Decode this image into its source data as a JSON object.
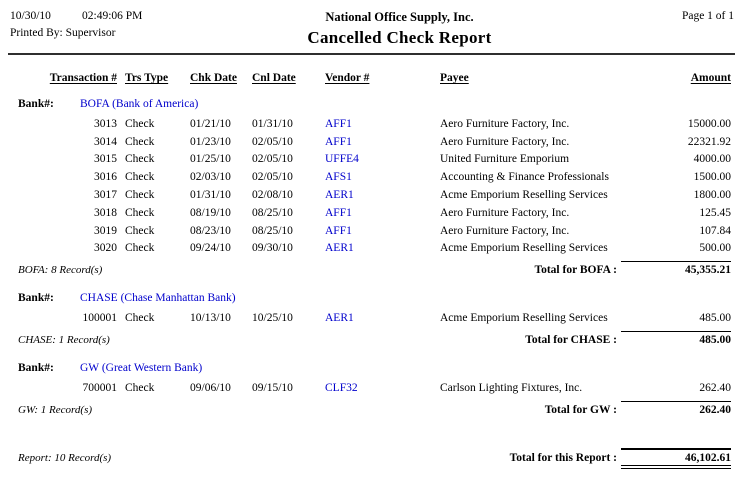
{
  "header": {
    "date": "10/30/10",
    "time": "02:49:06 PM",
    "printed_by": "Printed By: Supervisor",
    "company": "National Office Supply, Inc.",
    "title": "Cancelled Check Report",
    "page": "Page 1 of 1"
  },
  "table": {
    "columns": {
      "transaction": "Transaction #",
      "trs_type": "Trs Type",
      "chk_date": "Chk Date",
      "cnl_date": "Cnl Date",
      "vendor": "Vendor #",
      "payee": "Payee",
      "amount": "Amount"
    },
    "bank_label": "Bank#:",
    "groups": [
      {
        "bank": "BOFA (Bank of America)",
        "rows": [
          {
            "transaction": "3013",
            "trs_type": "Check",
            "chk_date": "01/21/10",
            "cnl_date": "01/31/10",
            "vendor": "AFF1",
            "payee": "Aero Furniture Factory, Inc.",
            "amount": "15000.00"
          },
          {
            "transaction": "3014",
            "trs_type": "Check",
            "chk_date": "01/23/10",
            "cnl_date": "02/05/10",
            "vendor": "AFF1",
            "payee": "Aero Furniture Factory, Inc.",
            "amount": "22321.92"
          },
          {
            "transaction": "3015",
            "trs_type": "Check",
            "chk_date": "01/25/10",
            "cnl_date": "02/05/10",
            "vendor": "UFFE4",
            "payee": "United Furniture Emporium",
            "amount": "4000.00"
          },
          {
            "transaction": "3016",
            "trs_type": "Check",
            "chk_date": "02/03/10",
            "cnl_date": "02/05/10",
            "vendor": "AFS1",
            "payee": "Accounting & Finance Professionals",
            "amount": "1500.00"
          },
          {
            "transaction": "3017",
            "trs_type": "Check",
            "chk_date": "01/31/10",
            "cnl_date": "02/08/10",
            "vendor": "AER1",
            "payee": "Acme Emporium Reselling Services",
            "amount": "1800.00"
          },
          {
            "transaction": "3018",
            "trs_type": "Check",
            "chk_date": "08/19/10",
            "cnl_date": "08/25/10",
            "vendor": "AFF1",
            "payee": "Aero Furniture Factory, Inc.",
            "amount": "125.45"
          },
          {
            "transaction": "3019",
            "trs_type": "Check",
            "chk_date": "08/23/10",
            "cnl_date": "08/25/10",
            "vendor": "AFF1",
            "payee": "Aero Furniture Factory, Inc.",
            "amount": "107.84"
          },
          {
            "transaction": "3020",
            "trs_type": "Check",
            "chk_date": "09/24/10",
            "cnl_date": "09/30/10",
            "vendor": "AER1",
            "payee": "Acme Emporium Reselling Services",
            "amount": "500.00"
          }
        ],
        "record_count": "BOFA: 8 Record(s)",
        "total_label": "Total for BOFA :",
        "total": "45,355.21"
      },
      {
        "bank": "CHASE (Chase Manhattan Bank)",
        "rows": [
          {
            "transaction": "100001",
            "trs_type": "Check",
            "chk_date": "10/13/10",
            "cnl_date": "10/25/10",
            "vendor": "AER1",
            "payee": "Acme Emporium Reselling Services",
            "amount": "485.00"
          }
        ],
        "record_count": "CHASE: 1 Record(s)",
        "total_label": "Total for CHASE :",
        "total": "485.00"
      },
      {
        "bank": "GW (Great Western Bank)",
        "rows": [
          {
            "transaction": "700001",
            "trs_type": "Check",
            "chk_date": "09/06/10",
            "cnl_date": "09/15/10",
            "vendor": "CLF32",
            "payee": "Carlson Lighting Fixtures, Inc.",
            "amount": "262.40"
          }
        ],
        "record_count": "GW: 1 Record(s)",
        "total_label": "Total for GW :",
        "total": "262.40"
      }
    ]
  },
  "report_footer": {
    "record_count": "Report: 10 Record(s)",
    "total_label": "Total for this Report :",
    "total": "46,102.61"
  },
  "colors": {
    "link_blue": "#0000CC",
    "text": "#000000",
    "background": "#FFFFFF"
  }
}
